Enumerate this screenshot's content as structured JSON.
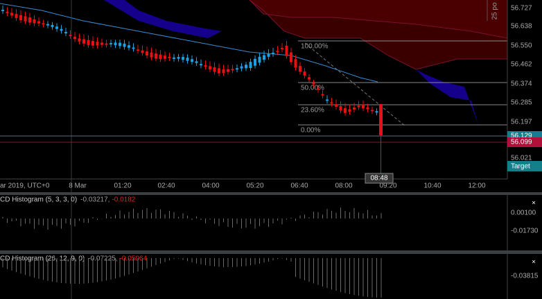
{
  "header": {
    "scale": "25 po"
  },
  "price_axis": {
    "labels": [
      "56.727",
      "56.638",
      "56.550",
      "56.462",
      "56.374",
      "56.285",
      "56.197",
      "56.021"
    ],
    "current_bid": "56.129",
    "current_ask": "56.099",
    "target": "Target"
  },
  "time_axis": {
    "labels": [
      "ar 2019, UTC+0",
      "8 Mar",
      "01:20",
      "02:40",
      "04:00",
      "05:20",
      "06:40",
      "08:00",
      "09:20",
      "10:40",
      "12:00"
    ],
    "cursor_time": "08:48"
  },
  "fibonacci": {
    "levels": [
      "100.00%",
      "50.00%",
      "23.60%",
      "0.00%"
    ]
  },
  "indicators": [
    {
      "name": "CD Histogram (5, 3, 3, 0)",
      "value1": "-0.03217,",
      "value2": "-0.0182",
      "axis_labels": [
        "0.00100",
        "-0.01730"
      ],
      "close": "×"
    },
    {
      "name": "CD Histogram (26, 12, 9, 0)",
      "value1": "-0.07225,",
      "value2": "-0.05064",
      "axis_labels": [
        "-0.03815"
      ],
      "close": "×"
    }
  ]
}
